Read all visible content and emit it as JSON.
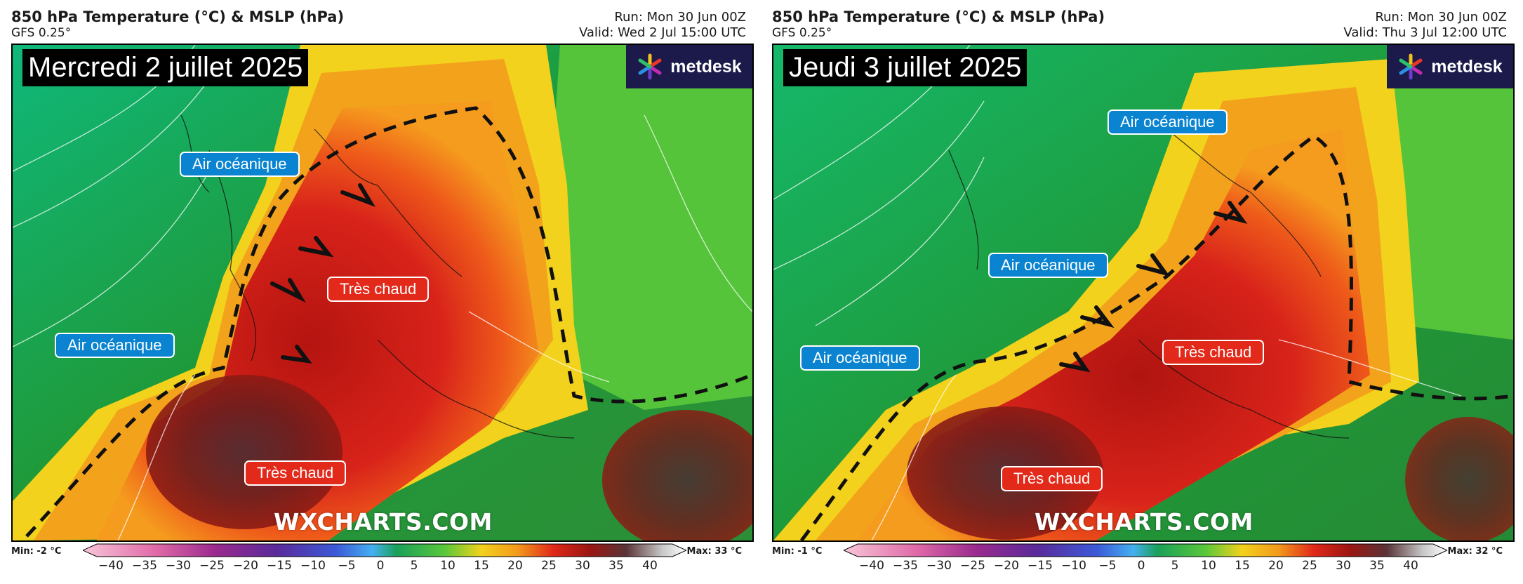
{
  "panels": [
    {
      "title": "850 hPa Temperature (°C) & MSLP (hPa)",
      "model": "GFS 0.25°",
      "run": "Run: Mon 30 Jun 00Z",
      "valid": "Valid: Wed 2 Jul 15:00 UTC",
      "date_label": "Mercredi 2 juillet 2025",
      "logo_text": "metdesk",
      "watermark": "WXCHARTS.COM",
      "labels": {
        "ocean_1": "Air océanique",
        "ocean_2": "Air océanique",
        "hot_1": "Très chaud",
        "hot_2": "Très chaud"
      },
      "min_label": "Min: -2 °C",
      "max_label": "Max: 33 °C"
    },
    {
      "title": "850 hPa Temperature (°C) & MSLP (hPa)",
      "model": "GFS 0.25°",
      "run": "Run: Mon 30 Jun 00Z",
      "valid": "Valid: Thu 3 Jul 12:00 UTC",
      "date_label": "Jeudi 3 juillet 2025",
      "logo_text": "metdesk",
      "watermark": "WXCHARTS.COM",
      "labels": {
        "ocean_1": "Air océanique",
        "ocean_2": "Air océanique",
        "ocean_3": "Air océanique",
        "hot_1": "Très chaud",
        "hot_2": "Très chaud"
      },
      "min_label": "Min: -1 °C",
      "max_label": "Max: 32 °C"
    }
  ],
  "colorbar_ticks": [
    "−40",
    "−35",
    "−30",
    "−25",
    "−20",
    "−15",
    "−10",
    "−5",
    "0",
    "5",
    "10",
    "15",
    "20",
    "25",
    "30",
    "35",
    "40"
  ],
  "colors": {
    "ocean_tag": "#0a84d0",
    "hot_tag": "#e2291a",
    "logo_bg": "#1b1a4a"
  }
}
